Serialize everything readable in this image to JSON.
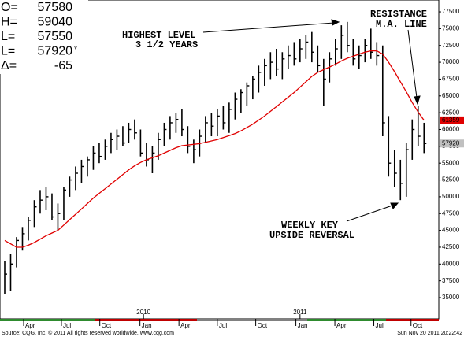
{
  "chart_data": {
    "type": "ohlc",
    "quote": [
      {
        "label": "O=",
        "value": 57580
      },
      {
        "label": "H=",
        "value": 59040
      },
      {
        "label": "L=",
        "value": 57550
      },
      {
        "label": "L=",
        "value": 57920,
        "flag": "v"
      },
      {
        "label": "Δ=",
        "value": -65
      }
    ],
    "annotations": [
      {
        "lines": [
          "HIGHEST LEVEL",
          "3 1/2 YEARS"
        ]
      },
      {
        "lines": [
          "RESISTANCE",
          "M.A. LINE"
        ]
      },
      {
        "lines": [
          "WEEKLY KEY",
          "UPSIDE REVERSAL"
        ]
      }
    ],
    "bars": {
      "color": "#000000",
      "high": [
        40500,
        41500,
        44000,
        45500,
        47000,
        49500,
        51000,
        51500,
        50500,
        49000,
        51500,
        53000,
        54500,
        55500,
        56000,
        57500,
        58000,
        58500,
        59500,
        60000,
        60500,
        61000,
        61500,
        60000,
        58000,
        57500,
        59500,
        61000,
        62000,
        62500,
        63000,
        60500,
        58500,
        60000,
        62000,
        62500,
        63000,
        63500,
        64000,
        65500,
        66000,
        67000,
        68000,
        69500,
        70500,
        71500,
        72000,
        71500,
        72500,
        73000,
        73500,
        74000,
        74500,
        72500,
        70500,
        71500,
        73500,
        75500,
        76000,
        73500,
        72500,
        73500,
        75000,
        73000,
        72500,
        62000,
        57000,
        55500,
        58000,
        61500,
        63500,
        61000
      ],
      "low": [
        35500,
        36000,
        39500,
        42000,
        43500,
        45500,
        47500,
        48000,
        46500,
        45000,
        46500,
        50000,
        51000,
        52000,
        53000,
        54000,
        55000,
        55500,
        56500,
        57000,
        57500,
        58000,
        58500,
        56000,
        54500,
        53500,
        55500,
        57500,
        58500,
        59500,
        59000,
        56500,
        55000,
        56000,
        58000,
        59000,
        59000,
        60000,
        59500,
        61500,
        62500,
        63500,
        64500,
        65500,
        66500,
        67500,
        68000,
        67500,
        69000,
        69500,
        70000,
        70500,
        70000,
        68500,
        63500,
        67000,
        69500,
        70500,
        71500,
        69500,
        69000,
        70000,
        70500,
        69500,
        59000,
        53000,
        51500,
        49500,
        50000,
        55500,
        57500,
        56500
      ],
      "close": [
        38500,
        40000,
        43500,
        44500,
        46500,
        48500,
        49500,
        50000,
        47000,
        47500,
        51000,
        52500,
        53500,
        54500,
        55500,
        56500,
        56000,
        57500,
        58500,
        59000,
        58000,
        60000,
        59500,
        56500,
        55500,
        56500,
        58500,
        60000,
        61000,
        61500,
        60000,
        57500,
        57000,
        59000,
        61000,
        60500,
        62000,
        61000,
        63000,
        64500,
        65500,
        66500,
        67500,
        68500,
        69500,
        70000,
        69000,
        70500,
        71000,
        70500,
        72000,
        73000,
        71500,
        69500,
        67500,
        70500,
        72000,
        74000,
        72500,
        70500,
        71000,
        72500,
        71500,
        71000,
        61000,
        55000,
        53500,
        52000,
        57000,
        60000,
        59000,
        57920
      ]
    },
    "ma": {
      "color": "#e00000",
      "values": [
        43500,
        43000,
        42500,
        42500,
        42800,
        43200,
        43700,
        44200,
        44600,
        45000,
        45800,
        46600,
        47400,
        48200,
        49000,
        49800,
        50500,
        51200,
        51900,
        52600,
        53300,
        54000,
        54600,
        55100,
        55500,
        55800,
        56100,
        56500,
        56900,
        57300,
        57600,
        57700,
        57800,
        57900,
        58100,
        58300,
        58500,
        58800,
        59100,
        59400,
        59800,
        60300,
        60800,
        61400,
        62000,
        62700,
        63400,
        64100,
        64800,
        65500,
        66300,
        67100,
        67900,
        68500,
        68900,
        69300,
        69700,
        70200,
        70600,
        70900,
        71200,
        71500,
        71700,
        71700,
        71200,
        70000,
        68600,
        67100,
        65600,
        64000,
        62600,
        61359
      ]
    },
    "ylim": [
      31840,
      79260
    ],
    "yticks": [
      35000,
      37500,
      40000,
      42500,
      45000,
      47500,
      50000,
      52500,
      55000,
      57500,
      60000,
      62500,
      65000,
      67500,
      70000,
      72500,
      75000,
      77500
    ],
    "xlim": [
      -0.8,
      73.5
    ],
    "xticks": [
      {
        "value": 3.2,
        "label": "Apr"
      },
      {
        "value": 9.6,
        "label": "Jul"
      },
      {
        "value": 16.1,
        "label": "Oct"
      },
      {
        "value": 22.9,
        "label": "Jan"
      },
      {
        "value": 29.5,
        "label": "Apr"
      },
      {
        "value": 36,
        "label": "Jul"
      },
      {
        "value": 42.5,
        "label": "Oct"
      },
      {
        "value": 49.3,
        "label": "Jan"
      },
      {
        "value": 55.9,
        "label": "Apr"
      },
      {
        "value": 62.5,
        "label": "Jul"
      },
      {
        "value": 68.8,
        "label": "Oct"
      }
    ],
    "years": [
      {
        "value": 23.5,
        "label": "2010"
      },
      {
        "value": 50,
        "label": "2011"
      }
    ],
    "footer_left": "Source: CQG, Inc. © 2011 All rights reserved worldwide. www.cqg.com",
    "footer_right": "Sun Nov 20 2011 20:22:42"
  }
}
